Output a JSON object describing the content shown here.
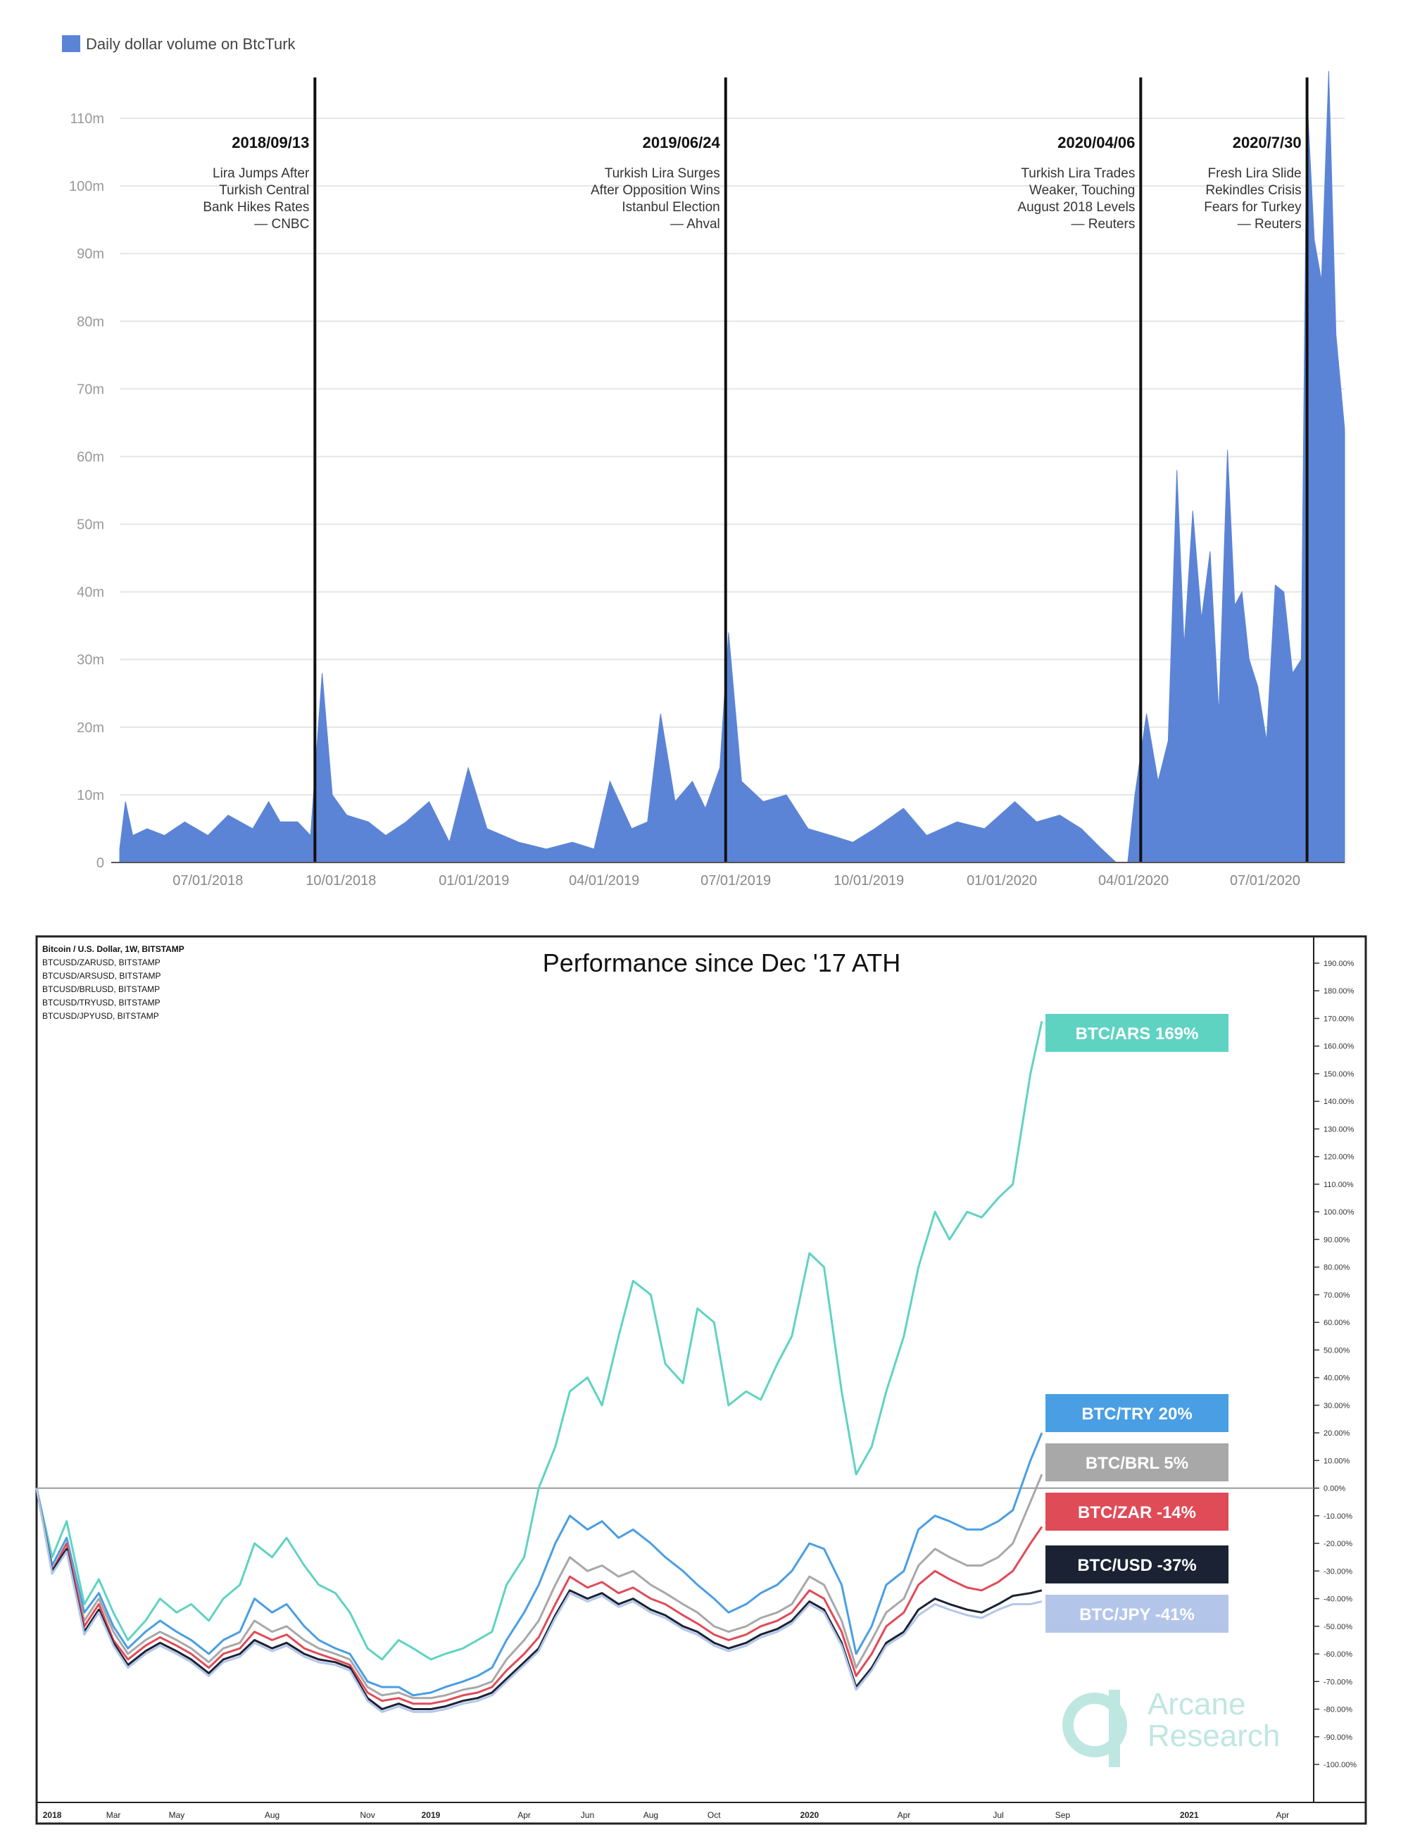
{
  "chart_data": [
    {
      "type": "area",
      "legend": "Daily dollar volume on BtcTurk",
      "legend_position": "top-left",
      "color": "#5b84d6",
      "y_ticks": [
        "0",
        "10m",
        "20m",
        "30m",
        "40m",
        "50m",
        "60m",
        "70m",
        "80m",
        "90m",
        "100m",
        "110m"
      ],
      "x_ticks": [
        "07/01/2018",
        "10/01/2018",
        "01/01/2019",
        "04/01/2019",
        "07/01/2019",
        "10/01/2019",
        "01/01/2020",
        "04/01/2020",
        "07/01/2020"
      ],
      "x_range": [
        "2018-05-01",
        "2020-08-25"
      ],
      "ylim": [
        0,
        115
      ],
      "grid": true,
      "series": [
        {
          "points": [
            [
              "2018-05-01",
              2
            ],
            [
              "2018-05-05",
              9
            ],
            [
              "2018-05-10",
              4
            ],
            [
              "2018-05-20",
              5
            ],
            [
              "2018-06-01",
              4
            ],
            [
              "2018-06-15",
              6
            ],
            [
              "2018-07-01",
              4
            ],
            [
              "2018-07-15",
              7
            ],
            [
              "2018-08-01",
              5
            ],
            [
              "2018-08-12",
              9
            ],
            [
              "2018-08-20",
              6
            ],
            [
              "2018-09-01",
              6
            ],
            [
              "2018-09-10",
              4
            ],
            [
              "2018-09-18",
              28
            ],
            [
              "2018-09-25",
              10
            ],
            [
              "2018-10-05",
              7
            ],
            [
              "2018-10-20",
              6
            ],
            [
              "2018-11-01",
              4
            ],
            [
              "2018-11-15",
              6
            ],
            [
              "2018-12-01",
              9
            ],
            [
              "2018-12-15",
              3
            ],
            [
              "2018-12-28",
              14
            ],
            [
              "2019-01-10",
              5
            ],
            [
              "2019-02-01",
              3
            ],
            [
              "2019-02-20",
              2
            ],
            [
              "2019-03-10",
              3
            ],
            [
              "2019-03-25",
              2
            ],
            [
              "2019-04-05",
              12
            ],
            [
              "2019-04-20",
              5
            ],
            [
              "2019-05-01",
              6
            ],
            [
              "2019-05-10",
              22
            ],
            [
              "2019-05-20",
              9
            ],
            [
              "2019-06-01",
              12
            ],
            [
              "2019-06-10",
              8
            ],
            [
              "2019-06-20",
              14
            ],
            [
              "2019-06-26",
              34
            ],
            [
              "2019-07-05",
              12
            ],
            [
              "2019-07-20",
              9
            ],
            [
              "2019-08-05",
              10
            ],
            [
              "2019-08-20",
              5
            ],
            [
              "2019-09-05",
              4
            ],
            [
              "2019-09-20",
              3
            ],
            [
              "2019-10-05",
              5
            ],
            [
              "2019-10-25",
              8
            ],
            [
              "2019-11-10",
              4
            ],
            [
              "2019-12-01",
              6
            ],
            [
              "2019-12-20",
              5
            ],
            [
              "2020-01-10",
              9
            ],
            [
              "2020-01-25",
              6
            ],
            [
              "2020-02-10",
              7
            ],
            [
              "2020-02-25",
              5
            ],
            [
              "2020-03-10",
              2
            ],
            [
              "2020-03-20",
              0
            ],
            [
              "2020-03-28",
              0
            ],
            [
              "2020-04-02",
              10
            ],
            [
              "2020-04-10",
              22
            ],
            [
              "2020-04-18",
              12
            ],
            [
              "2020-04-25",
              18
            ],
            [
              "2020-05-01",
              58
            ],
            [
              "2020-05-06",
              32
            ],
            [
              "2020-05-12",
              52
            ],
            [
              "2020-05-18",
              36
            ],
            [
              "2020-05-24",
              46
            ],
            [
              "2020-05-30",
              22
            ],
            [
              "2020-06-05",
              61
            ],
            [
              "2020-06-10",
              38
            ],
            [
              "2020-06-15",
              40
            ],
            [
              "2020-06-20",
              30
            ],
            [
              "2020-06-26",
              26
            ],
            [
              "2020-07-02",
              18
            ],
            [
              "2020-07-08",
              41
            ],
            [
              "2020-07-14",
              40
            ],
            [
              "2020-07-20",
              28
            ],
            [
              "2020-07-26",
              30
            ],
            [
              "2020-07-30",
              113
            ],
            [
              "2020-08-04",
              92
            ],
            [
              "2020-08-09",
              86
            ],
            [
              "2020-08-14",
              117
            ],
            [
              "2020-08-19",
              78
            ],
            [
              "2020-08-25",
              64
            ]
          ]
        }
      ],
      "annotations": [
        {
          "date": "2018-09-13",
          "label": "2018/09/13",
          "lines": [
            "Lira Jumps After",
            "Turkish Central",
            "Bank Hikes Rates",
            "— CNBC"
          ]
        },
        {
          "date": "2019-06-24",
          "label": "2019/06/24",
          "lines": [
            "Turkish Lira Surges",
            "After Opposition Wins",
            "Istanbul Election",
            "— Ahval"
          ]
        },
        {
          "date": "2020-04-06",
          "label": "2020/04/06",
          "lines": [
            "Turkish Lira Trades",
            "Weaker, Touching",
            "August 2018 Levels",
            "— Reuters"
          ]
        },
        {
          "date": "2020-07-30",
          "label": "2020/7/30",
          "lines": [
            "Fresh Lira Slide",
            "Rekindles Crisis",
            "Fears for Turkey",
            "— Reuters"
          ]
        }
      ]
    },
    {
      "type": "line",
      "title": "Performance since Dec '17 ATH",
      "header_lines": [
        "Bitcoin / U.S. Dollar, 1W, BITSTAMP",
        "BTCUSD/ZARUSD, BITSTAMP",
        "BTCUSD/ARSUSD, BITSTAMP",
        "BTCUSD/BRLUSD, BITSTAMP",
        "BTCUSD/TRYUSD, BITSTAMP",
        "BTCUSD/JPYUSD, BITSTAMP"
      ],
      "y_ticks": [
        "190.00%",
        "180.00%",
        "170.00%",
        "160.00%",
        "150.00%",
        "140.00%",
        "130.00%",
        "120.00%",
        "110.00%",
        "100.00%",
        "90.00%",
        "80.00%",
        "70.00%",
        "60.00%",
        "50.00%",
        "40.00%",
        "30.00%",
        "20.00%",
        "10.00%",
        "0.00%",
        "-10.00%",
        "-20.00%",
        "-30.00%",
        "-40.00%",
        "-50.00%",
        "-60.00%",
        "-70.00%",
        "-80.00%",
        "-90.00%",
        "-100.00%"
      ],
      "ylim": [
        -100,
        190
      ],
      "x_ticks": [
        {
          "label": "2018",
          "date": "2018-01-01"
        },
        {
          "label": "Mar",
          "date": "2018-03-01"
        },
        {
          "label": "May",
          "date": "2018-05-01"
        },
        {
          "label": "Aug",
          "date": "2018-08-01"
        },
        {
          "label": "Nov",
          "date": "2018-11-01"
        },
        {
          "label": "2019",
          "date": "2019-01-01"
        },
        {
          "label": "Apr",
          "date": "2019-04-01"
        },
        {
          "label": "Jun",
          "date": "2019-06-01"
        },
        {
          "label": "Aug",
          "date": "2019-08-01"
        },
        {
          "label": "Oct",
          "date": "2019-10-01"
        },
        {
          "label": "2020",
          "date": "2020-01-01"
        },
        {
          "label": "Apr",
          "date": "2020-04-01"
        },
        {
          "label": "Jul",
          "date": "2020-07-01"
        },
        {
          "label": "Sep",
          "date": "2020-09-01"
        },
        {
          "label": "2021",
          "date": "2021-01-01"
        },
        {
          "label": "Apr",
          "date": "2021-04-01"
        }
      ],
      "x_range": [
        "2017-12-17",
        "2021-05-01"
      ],
      "dates": [
        "2017-12-17",
        "2018-01-01",
        "2018-01-15",
        "2018-02-01",
        "2018-02-15",
        "2018-03-01",
        "2018-03-15",
        "2018-04-01",
        "2018-04-15",
        "2018-05-01",
        "2018-05-15",
        "2018-06-01",
        "2018-06-15",
        "2018-07-01",
        "2018-07-15",
        "2018-08-01",
        "2018-08-15",
        "2018-09-01",
        "2018-09-15",
        "2018-10-01",
        "2018-10-15",
        "2018-11-01",
        "2018-11-15",
        "2018-12-01",
        "2018-12-15",
        "2019-01-01",
        "2019-01-15",
        "2019-02-01",
        "2019-02-15",
        "2019-03-01",
        "2019-03-15",
        "2019-04-01",
        "2019-04-15",
        "2019-05-01",
        "2019-05-15",
        "2019-06-01",
        "2019-06-15",
        "2019-07-01",
        "2019-07-15",
        "2019-08-01",
        "2019-08-15",
        "2019-09-01",
        "2019-09-15",
        "2019-10-01",
        "2019-10-15",
        "2019-11-01",
        "2019-11-15",
        "2019-12-01",
        "2019-12-15",
        "2020-01-01",
        "2020-01-15",
        "2020-02-01",
        "2020-02-15",
        "2020-03-01",
        "2020-03-15",
        "2020-04-01",
        "2020-04-15",
        "2020-05-01",
        "2020-05-15",
        "2020-06-01",
        "2020-06-15",
        "2020-07-01",
        "2020-07-15",
        "2020-08-01",
        "2020-08-12"
      ],
      "series": [
        {
          "name": "BTC/ARS 169%",
          "color": "#5fd3c2",
          "values": [
            0,
            -25,
            -12,
            -42,
            -33,
            -45,
            -55,
            -48,
            -40,
            -45,
            -42,
            -48,
            -40,
            -35,
            -20,
            -25,
            -18,
            -28,
            -35,
            -38,
            -45,
            -58,
            -62,
            -55,
            -58,
            -62,
            -60,
            -58,
            -55,
            -52,
            -35,
            -25,
            0,
            15,
            35,
            40,
            30,
            55,
            75,
            70,
            45,
            38,
            65,
            60,
            30,
            35,
            32,
            45,
            55,
            85,
            80,
            35,
            5,
            15,
            35,
            55,
            80,
            100,
            90,
            100,
            98,
            105,
            110,
            150,
            169
          ]
        },
        {
          "name": "BTC/TRY 20%",
          "color": "#4a9ee3",
          "values": [
            0,
            -28,
            -18,
            -45,
            -38,
            -50,
            -58,
            -52,
            -48,
            -52,
            -55,
            -60,
            -55,
            -52,
            -40,
            -45,
            -42,
            -50,
            -55,
            -58,
            -60,
            -70,
            -72,
            -72,
            -75,
            -74,
            -72,
            -70,
            -68,
            -65,
            -55,
            -45,
            -35,
            -20,
            -10,
            -15,
            -12,
            -18,
            -15,
            -20,
            -25,
            -30,
            -35,
            -40,
            -45,
            -42,
            -38,
            -35,
            -30,
            -20,
            -22,
            -35,
            -60,
            -50,
            -35,
            -30,
            -15,
            -10,
            -12,
            -15,
            -15,
            -12,
            -8,
            10,
            20
          ]
        },
        {
          "name": "BTC/BRL 5%",
          "color": "#a8a8a8",
          "values": [
            0,
            -30,
            -20,
            -48,
            -40,
            -52,
            -60,
            -55,
            -52,
            -55,
            -58,
            -63,
            -58,
            -56,
            -48,
            -52,
            -50,
            -55,
            -58,
            -60,
            -62,
            -72,
            -75,
            -74,
            -76,
            -76,
            -75,
            -73,
            -72,
            -70,
            -62,
            -55,
            -48,
            -35,
            -25,
            -30,
            -28,
            -32,
            -30,
            -35,
            -38,
            -42,
            -45,
            -50,
            -52,
            -50,
            -47,
            -45,
            -42,
            -32,
            -35,
            -48,
            -65,
            -55,
            -45,
            -40,
            -28,
            -22,
            -25,
            -28,
            -28,
            -25,
            -20,
            -5,
            5
          ]
        },
        {
          "name": "BTC/ZAR -14%",
          "color": "#e04b58",
          "values": [
            0,
            -30,
            -20,
            -50,
            -42,
            -55,
            -62,
            -57,
            -54,
            -57,
            -60,
            -65,
            -60,
            -58,
            -52,
            -55,
            -53,
            -58,
            -60,
            -62,
            -64,
            -74,
            -77,
            -76,
            -78,
            -78,
            -77,
            -75,
            -74,
            -72,
            -66,
            -60,
            -54,
            -42,
            -32,
            -36,
            -34,
            -38,
            -36,
            -40,
            -42,
            -46,
            -49,
            -53,
            -55,
            -53,
            -50,
            -48,
            -45,
            -37,
            -40,
            -52,
            -68,
            -60,
            -50,
            -45,
            -35,
            -30,
            -33,
            -36,
            -37,
            -34,
            -30,
            -20,
            -14
          ]
        },
        {
          "name": "BTC/USD -37%",
          "color": "#1a2233",
          "values": [
            0,
            -30,
            -22,
            -52,
            -44,
            -56,
            -64,
            -59,
            -56,
            -59,
            -62,
            -67,
            -62,
            -60,
            -55,
            -58,
            -56,
            -60,
            -62,
            -63,
            -65,
            -76,
            -80,
            -78,
            -80,
            -80,
            -79,
            -77,
            -76,
            -74,
            -69,
            -63,
            -58,
            -46,
            -37,
            -40,
            -38,
            -42,
            -40,
            -44,
            -46,
            -50,
            -52,
            -56,
            -58,
            -56,
            -53,
            -51,
            -48,
            -41,
            -44,
            -56,
            -72,
            -65,
            -56,
            -52,
            -44,
            -40,
            -42,
            -44,
            -45,
            -42,
            -39,
            -38,
            -37
          ]
        },
        {
          "name": "BTC/JPY -41%",
          "color": "#b3c6ea",
          "values": [
            0,
            -31,
            -23,
            -53,
            -45,
            -57,
            -65,
            -60,
            -57,
            -60,
            -63,
            -68,
            -63,
            -61,
            -56,
            -59,
            -57,
            -61,
            -63,
            -64,
            -66,
            -77,
            -81,
            -79,
            -81,
            -81,
            -80,
            -78,
            -77,
            -75,
            -70,
            -64,
            -59,
            -47,
            -38,
            -41,
            -39,
            -43,
            -41,
            -45,
            -47,
            -51,
            -53,
            -57,
            -59,
            -57,
            -54,
            -52,
            -49,
            -42,
            -45,
            -57,
            -73,
            -66,
            -57,
            -53,
            -46,
            -42,
            -44,
            -46,
            -47,
            -44,
            -42,
            -42,
            -41
          ]
        }
      ]
    }
  ],
  "logo": {
    "line1": "Arcane",
    "line2": "Research",
    "color": "#bfe7e2"
  }
}
